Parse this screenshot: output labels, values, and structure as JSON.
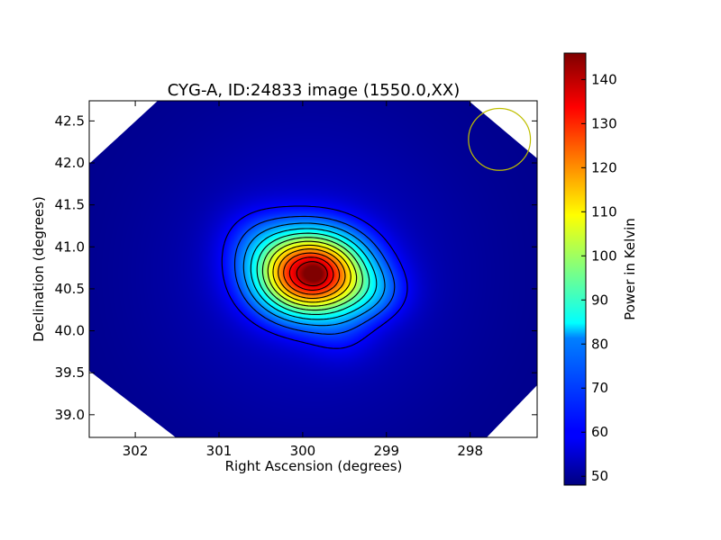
{
  "chart_data": {
    "type": "heatmap",
    "title": "CYG-A, ID:24833 image (1550.0,XX)",
    "xlabel": "Right Ascension (degrees)",
    "ylabel": "Declination (degrees)",
    "xlim": [
      302.55,
      297.2
    ],
    "ylim": [
      38.73,
      42.74
    ],
    "x_ticks": [
      302,
      301,
      300,
      299,
      298
    ],
    "y_ticks": [
      39.0,
      39.5,
      40.0,
      40.5,
      41.0,
      41.5,
      42.0,
      42.5
    ],
    "x_tick_labels": [
      "302",
      "301",
      "300",
      "299",
      "298"
    ],
    "y_tick_labels": [
      "39.0",
      "39.5",
      "40.0",
      "40.5",
      "41.0",
      "41.5",
      "42.0",
      "42.5"
    ],
    "source_center": {
      "ra": 299.9,
      "dec": 40.68
    },
    "peak_value": 146,
    "background_value": 49,
    "contour_count": 12,
    "beam_circle": {
      "ra": 297.65,
      "dec": 42.28,
      "radius_deg": 0.37
    },
    "colormap": "jet",
    "colorbar": {
      "label": "Power in Kelvin",
      "min": 48,
      "max": 146,
      "ticks": [
        50,
        60,
        70,
        80,
        90,
        100,
        110,
        120,
        130,
        140
      ],
      "tick_labels": [
        "50",
        "60",
        "70",
        "80",
        "90",
        "100",
        "110",
        "120",
        "130",
        "140"
      ]
    },
    "colors": {
      "contour": "#000000",
      "beam_circle": "#bfbf00",
      "blank_corners": "#ffffff"
    }
  }
}
